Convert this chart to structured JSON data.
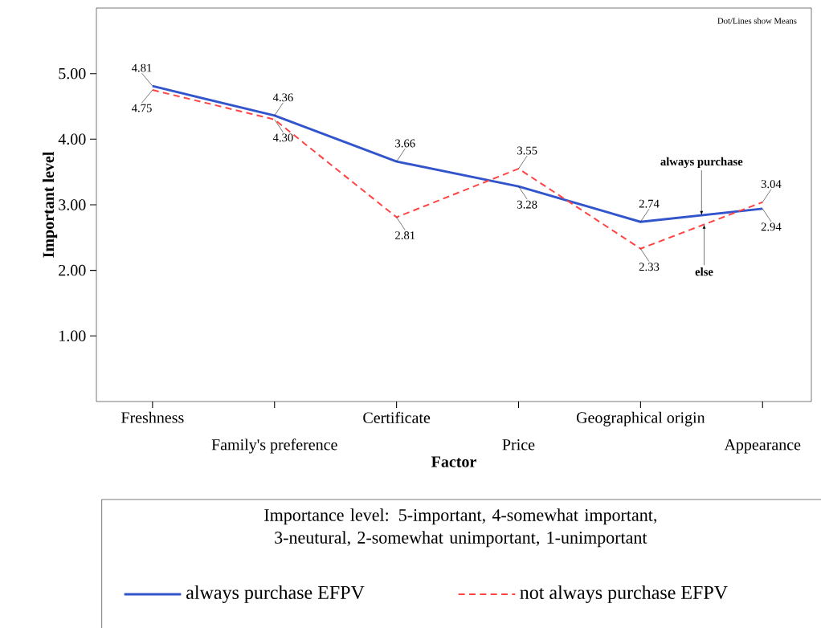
{
  "chart_data": {
    "type": "line",
    "xlabel": "Factor",
    "ylabel": "Important level",
    "categories": [
      "Freshness",
      "Family's preference",
      "Certificate",
      "Price",
      "Geographical origin",
      "Appearance"
    ],
    "series": [
      {
        "name": "always purchase EFPV",
        "color": "#3355cc",
        "line_style": "solid",
        "values": [
          4.81,
          4.36,
          3.66,
          3.28,
          2.74,
          2.94
        ],
        "value_labels": [
          "4.81",
          "4.36",
          "3.66",
          "3.28",
          "2.74",
          "2.94"
        ]
      },
      {
        "name": "not always purchase EFPV",
        "color": "#ff4444",
        "line_style": "dashed",
        "values": [
          4.75,
          4.3,
          2.81,
          3.55,
          2.33,
          3.04
        ],
        "value_labels": [
          "4.75",
          "4.30",
          "2.81",
          "3.55",
          "2.33",
          "3.04"
        ]
      }
    ],
    "ylim": [
      0,
      6
    ],
    "yticks": [
      {
        "value": 1,
        "label": "1.00"
      },
      {
        "value": 2,
        "label": "2.00"
      },
      {
        "value": 3,
        "label": "3.00"
      },
      {
        "value": 4,
        "label": "4.00"
      },
      {
        "value": 5,
        "label": "5.00"
      }
    ],
    "legend": "bottom",
    "annotations": [
      "Dot/Lines show Means",
      {
        "text": "always purchase",
        "y": 2.84
      },
      {
        "text": "else",
        "y": 2.7
      },
      "Importance level: 5-important, 4-somewhat important, 3-neutural, 2-somewhat unimportant, 1-unimportant"
    ]
  }
}
